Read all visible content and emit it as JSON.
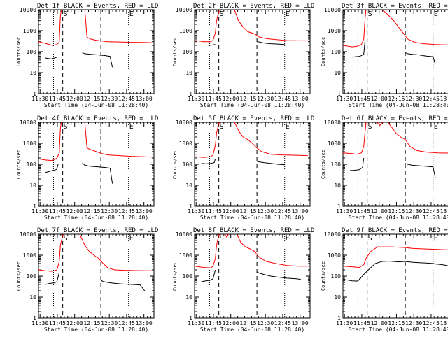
{
  "page": {
    "caption": ""
  },
  "common": {
    "xlabel": "Start Time (04-Jun-08 11:28:40)",
    "ylabel": "Counts/sec",
    "x_ticks": [
      "11:30",
      "11:45",
      "12:00",
      "12:15",
      "12:30",
      "12:45",
      "13:00"
    ],
    "y_ticks": [
      "1",
      "10",
      "100",
      "1000",
      "10000"
    ],
    "letters": {
      "s": "S",
      "e": "E"
    },
    "colors": {
      "events": "#000000",
      "lld": "#ff0000"
    }
  },
  "chart_data": [
    {
      "type": "line",
      "title": "Det 1f BLACK = Events, RED = LLD",
      "x_unit": "minutes after 11:28:40",
      "y_scale": "log",
      "ylim": [
        1,
        10000
      ],
      "xlim": [
        0,
        100
      ],
      "markers": {
        "dotted": [
          13,
          78
        ],
        "dashed": [
          21,
          54
        ],
        "S_at": 21,
        "E_at": 78
      },
      "series": [
        {
          "name": "LLD",
          "color": "#ff0000",
          "x": [
            0,
            6,
            12,
            16,
            18,
            19,
            20,
            28,
            35,
            38,
            40,
            42,
            45,
            50,
            55,
            60,
            70,
            80,
            90,
            98
          ],
          "y": [
            300,
            250,
            200,
            220,
            300,
            5000,
            12000,
            12000,
            12000,
            12000,
            12000,
            500,
            400,
            350,
            320,
            300,
            290,
            280,
            275,
            270
          ]
        },
        {
          "name": "Events",
          "color": "#000000",
          "segments": [
            {
              "x": [
                6,
                8,
                11,
                14,
                16
              ],
              "y": [
                50,
                48,
                45,
                50,
                55
              ]
            },
            {
              "x": [
                38,
                40,
                45,
                52,
                58,
                62,
                64
              ],
              "y": [
                90,
                80,
                75,
                70,
                65,
                60,
                18
              ]
            }
          ]
        }
      ]
    },
    {
      "type": "line",
      "title": "Det 2f BLACK = Events, RED = LLD",
      "x_unit": "minutes after 11:28:40",
      "y_scale": "log",
      "ylim": [
        1,
        10000
      ],
      "xlim": [
        0,
        100
      ],
      "markers": {
        "dotted": [
          13,
          78
        ],
        "dashed": [
          21,
          54
        ],
        "S_at": 21,
        "E_at": 78
      },
      "series": [
        {
          "name": "LLD",
          "color": "#ff0000",
          "x": [
            0,
            8,
            14,
            16,
            18,
            19,
            21,
            25,
            30,
            34,
            38,
            42,
            46,
            52,
            56,
            62,
            70,
            80,
            90,
            98
          ],
          "y": [
            350,
            300,
            300,
            350,
            800,
            3000,
            8000,
            12000,
            12000,
            12000,
            3000,
            1500,
            900,
            700,
            500,
            420,
            380,
            340,
            330,
            330
          ]
        },
        {
          "name": "Events",
          "color": "#000000",
          "segments": [
            {
              "x": [
                12,
                14,
                16,
                18
              ],
              "y": [
                200,
                205,
                210,
                220
              ]
            },
            {
              "x": [
                54,
                56,
                60,
                66,
                72,
                78
              ],
              "y": [
                300,
                290,
                260,
                240,
                230,
                220
              ]
            }
          ]
        }
      ]
    },
    {
      "type": "line",
      "title": "Det 3f BLACK = Events, RED = LLD",
      "x_unit": "minutes after 11:28:40",
      "y_scale": "log",
      "ylim": [
        1,
        10000
      ],
      "xlim": [
        0,
        100
      ],
      "markers": {
        "dotted": [
          13,
          78
        ],
        "dashed": [
          21,
          54
        ],
        "S_at": 21,
        "E_at": 78
      },
      "series": [
        {
          "name": "LLD",
          "color": "#ff0000",
          "x": [
            0,
            8,
            12,
            16,
            18,
            19,
            20,
            24,
            28,
            32,
            36,
            40,
            44,
            48,
            52,
            56,
            62,
            70,
            80,
            90,
            98
          ],
          "y": [
            200,
            170,
            180,
            220,
            400,
            3000,
            12000,
            12000,
            12000,
            12000,
            8000,
            5000,
            3000,
            1500,
            800,
            400,
            280,
            240,
            220,
            210,
            200
          ]
        },
        {
          "name": "Events",
          "color": "#000000",
          "segments": [
            {
              "x": [
                8,
                11,
                14,
                16,
                18,
                19
              ],
              "y": [
                55,
                58,
                60,
                65,
                75,
                300
              ]
            },
            {
              "x": [
                54,
                56,
                60,
                66,
                72,
                78,
                80
              ],
              "y": [
                90,
                80,
                75,
                70,
                62,
                58,
                25
              ]
            }
          ]
        }
      ]
    },
    {
      "type": "line",
      "title": "Det 4f BLACK = Events, RED = LLD",
      "x_unit": "minutes after 11:28:40",
      "y_scale": "log",
      "ylim": [
        1,
        10000
      ],
      "xlim": [
        0,
        100
      ],
      "markers": {
        "dotted": [
          13,
          78
        ],
        "dashed": [
          21,
          54
        ],
        "S_at": 21,
        "E_at": 78
      },
      "series": [
        {
          "name": "LLD",
          "color": "#ff0000",
          "x": [
            0,
            6,
            12,
            16,
            18,
            19,
            20,
            28,
            35,
            38,
            40,
            42,
            45,
            50,
            55,
            60,
            70,
            80,
            90,
            98
          ],
          "y": [
            180,
            160,
            150,
            200,
            350,
            5000,
            12000,
            12000,
            12000,
            12000,
            12000,
            600,
            500,
            400,
            320,
            280,
            260,
            240,
            230,
            220
          ]
        },
        {
          "name": "Events",
          "color": "#000000",
          "segments": [
            {
              "x": [
                6,
                9,
                12,
                15,
                16,
                17
              ],
              "y": [
                40,
                45,
                50,
                55,
                60,
                100
              ]
            },
            {
              "x": [
                38,
                40,
                45,
                52,
                58,
                62,
                64
              ],
              "y": [
                120,
                90,
                80,
                75,
                70,
                65,
                12
              ]
            }
          ]
        }
      ]
    },
    {
      "type": "line",
      "title": "Det 5f BLACK = Events, RED = LLD",
      "x_unit": "minutes after 11:28:40",
      "y_scale": "log",
      "ylim": [
        1,
        10000
      ],
      "xlim": [
        0,
        100
      ],
      "markers": {
        "dotted": [
          13,
          78
        ],
        "dashed": [
          21,
          54
        ],
        "S_at": 21,
        "E_at": 78
      },
      "series": [
        {
          "name": "LLD",
          "color": "#ff0000",
          "x": [
            0,
            8,
            14,
            16,
            18,
            19,
            21,
            25,
            30,
            34,
            38,
            42,
            46,
            50,
            54,
            58,
            66,
            76,
            88,
            98
          ],
          "y": [
            230,
            210,
            230,
            280,
            800,
            3000,
            9000,
            12000,
            12000,
            12000,
            4000,
            2000,
            1500,
            1000,
            600,
            400,
            300,
            280,
            270,
            260
          ]
        },
        {
          "name": "Events",
          "color": "#000000",
          "segments": [
            {
              "x": [
                6,
                10,
                14,
                17,
                18
              ],
              "y": [
                110,
                105,
                110,
                120,
                180
              ]
            },
            {
              "x": [
                54,
                56,
                60,
                66,
                72,
                78
              ],
              "y": [
                140,
                130,
                120,
                110,
                100,
                95
              ]
            }
          ]
        }
      ]
    },
    {
      "type": "line",
      "title": "Det 6f BLACK = Events, RED = LLD",
      "x_unit": "minutes after 11:28:40",
      "y_scale": "log",
      "ylim": [
        1,
        10000
      ],
      "xlim": [
        0,
        100
      ],
      "markers": {
        "dotted": [
          13,
          78
        ],
        "dashed": [
          21,
          54
        ],
        "S_at": 21,
        "E_at": 78
      },
      "series": [
        {
          "name": "LLD",
          "color": "#ff0000",
          "x": [
            0,
            8,
            12,
            16,
            18,
            19,
            20,
            24,
            28,
            32,
            34,
            38,
            42,
            46,
            50,
            54,
            58,
            64,
            72,
            82,
            92,
            98
          ],
          "y": [
            350,
            320,
            300,
            350,
            700,
            3000,
            10000,
            12000,
            12000,
            7000,
            10000,
            12000,
            6000,
            3000,
            2000,
            1500,
            700,
            450,
            380,
            350,
            340,
            330
          ]
        },
        {
          "name": "Events",
          "color": "#000000",
          "segments": [
            {
              "x": [
                6,
                10,
                14,
                17,
                18
              ],
              "y": [
                50,
                52,
                55,
                70,
                200
              ]
            },
            {
              "x": [
                54,
                56,
                60,
                66,
                72,
                78,
                80
              ],
              "y": [
                110,
                100,
                90,
                85,
                80,
                75,
                22
              ]
            }
          ]
        }
      ]
    },
    {
      "type": "line",
      "title": "Det 7f BLACK = Events, RED = LLD",
      "x_unit": "minutes after 11:28:40",
      "y_scale": "log",
      "ylim": [
        1,
        10000
      ],
      "xlim": [
        0,
        100
      ],
      "markers": {
        "dotted": [
          13,
          78
        ],
        "dashed": [
          21,
          54
        ],
        "S_at": 21,
        "E_at": 78
      },
      "series": [
        {
          "name": "LLD",
          "color": "#ff0000",
          "x": [
            0,
            6,
            12,
            16,
            18,
            19,
            21,
            25,
            30,
            35,
            40,
            44,
            48,
            52,
            56,
            60,
            66,
            74,
            84,
            94,
            98
          ],
          "y": [
            200,
            180,
            170,
            200,
            500,
            3000,
            9000,
            12000,
            12000,
            12000,
            3000,
            1500,
            1000,
            700,
            400,
            250,
            200,
            190,
            185,
            180,
            180
          ]
        },
        {
          "name": "Events",
          "color": "#000000",
          "segments": [
            {
              "x": [
                6,
                10,
                14,
                16,
                18
              ],
              "y": [
                40,
                45,
                48,
                55,
                150
              ]
            },
            {
              "x": [
                54,
                56,
                60,
                66,
                72,
                80,
                88,
                92
              ],
              "y": [
                65,
                55,
                50,
                45,
                42,
                40,
                38,
                20
              ]
            }
          ]
        }
      ]
    },
    {
      "type": "line",
      "title": "Det 8f BLACK = Events, RED = LLD",
      "x_unit": "minutes after 11:28:40",
      "y_scale": "log",
      "ylim": [
        1,
        10000
      ],
      "xlim": [
        0,
        100
      ],
      "markers": {
        "dotted": [
          13,
          78
        ],
        "dashed": [
          21,
          54
        ],
        "S_at": 21,
        "E_at": 78
      },
      "series": [
        {
          "name": "LLD",
          "color": "#ff0000",
          "x": [
            0,
            8,
            14,
            16,
            18,
            19,
            21,
            25,
            28,
            30,
            32,
            36,
            40,
            44,
            48,
            52,
            56,
            62,
            70,
            80,
            90,
            98
          ],
          "y": [
            300,
            260,
            250,
            300,
            700,
            3000,
            9000,
            12000,
            7000,
            12000,
            12000,
            12000,
            4000,
            2500,
            2000,
            1500,
            800,
            500,
            400,
            320,
            300,
            300
          ]
        },
        {
          "name": "Events",
          "color": "#000000",
          "segments": [
            {
              "x": [
                6,
                10,
                14,
                16,
                18
              ],
              "y": [
                55,
                60,
                65,
                75,
                200
              ]
            },
            {
              "x": [
                54,
                56,
                60,
                66,
                72,
                80,
                88,
                92
              ],
              "y": [
                160,
                140,
                120,
                100,
                90,
                80,
                75,
                70
              ]
            }
          ]
        }
      ]
    },
    {
      "type": "line",
      "title": "Det 9f BLACK = Events, RED = LLD",
      "x_unit": "minutes after 11:28:40",
      "y_scale": "log",
      "ylim": [
        1,
        10000
      ],
      "xlim": [
        0,
        100
      ],
      "markers": {
        "dotted": [
          13,
          78
        ],
        "dashed": [
          21,
          54
        ],
        "S_at": 21,
        "E_at": 78
      },
      "series": [
        {
          "name": "LLD",
          "color": "#ff0000",
          "x": [
            0,
            8,
            14,
            18,
            20,
            24,
            30,
            36,
            42,
            48,
            54,
            60,
            70,
            80,
            90,
            98
          ],
          "y": [
            300,
            280,
            260,
            350,
            700,
            1500,
            2500,
            2500,
            2500,
            2400,
            2300,
            2100,
            2000,
            1900,
            1800,
            1750
          ]
        },
        {
          "name": "Events",
          "color": "#000000",
          "segments": [
            {
              "x": [
                0,
                4,
                8,
                12,
                14,
                16
              ],
              "y": [
                70,
                65,
                60,
                58,
                65,
                90
              ]
            },
            {
              "x": [
                14,
                16,
                18,
                22,
                28,
                34,
                40,
                48,
                54,
                60,
                66,
                72,
                78,
                80,
                84,
                88,
                92,
                96
              ],
              "y": [
                70,
                90,
                120,
                200,
                400,
                500,
                520,
                480,
                500,
                460,
                440,
                420,
                400,
                380,
                360,
                340,
                300,
                80
              ]
            }
          ]
        }
      ]
    }
  ]
}
